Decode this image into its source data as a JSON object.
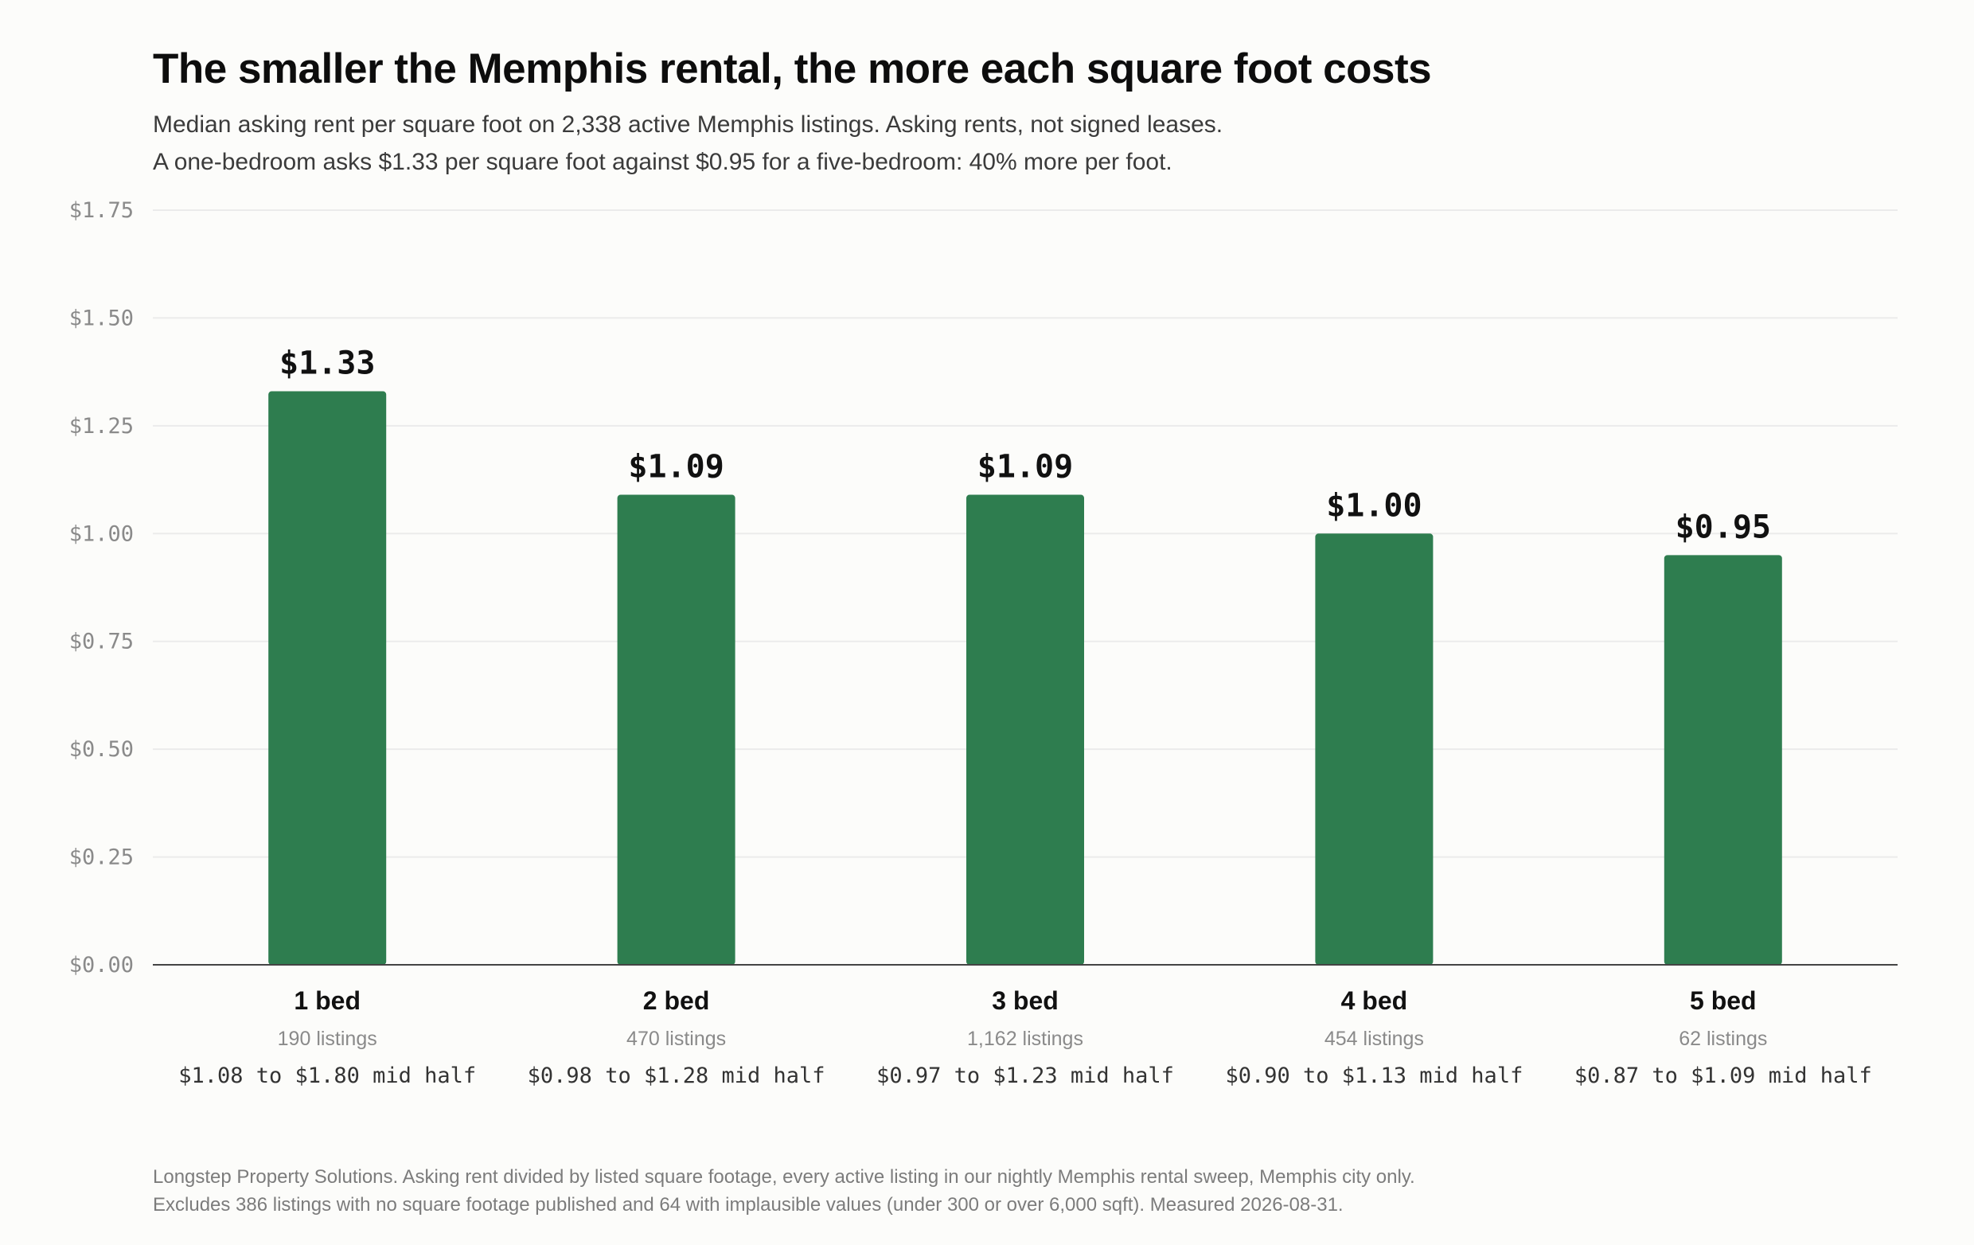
{
  "title": "The smaller the Memphis rental, the more each square foot costs",
  "subtitle_lines": [
    "Median asking rent per square foot on 2,338 active Memphis listings. Asking rents, not signed leases.",
    "A one-bedroom asks $1.33 per square foot against $0.95 for a five-bedroom: 40% more per foot."
  ],
  "footer_lines": [
    "Longstep Property Solutions. Asking rent divided by listed square footage, every active listing in our nightly Memphis rental sweep, Memphis city only.",
    "Excludes 386 listings with no square footage published and 64 with implausible values (under 300 or over 6,000 sqft). Measured 2026-08-31."
  ],
  "colors": {
    "bar": "#2e7d4f",
    "grid": "#ebebeb",
    "axis": "#444444",
    "tick_label": "#8a8a8a",
    "value_label": "#111111",
    "category_label": "#111111",
    "count_label": "#8a8a8a",
    "range_label": "#333333"
  },
  "chart_data": {
    "type": "bar",
    "title": "The smaller the Memphis rental, the more each square foot costs",
    "xlabel": "",
    "ylabel": "",
    "ylim": [
      0,
      1.75
    ],
    "yticks": [
      0,
      0.25,
      0.5,
      0.75,
      1.0,
      1.25,
      1.5,
      1.75
    ],
    "ytick_labels": [
      "$0.00",
      "$0.25",
      "$0.50",
      "$0.75",
      "$1.00",
      "$1.25",
      "$1.50",
      "$1.75"
    ],
    "grid": true,
    "legend": "none",
    "categories": [
      "1 bed",
      "2 bed",
      "3 bed",
      "4 bed",
      "5 bed"
    ],
    "values": [
      1.33,
      1.09,
      1.09,
      1.0,
      0.95
    ],
    "value_labels": [
      "$1.33",
      "$1.09",
      "$1.09",
      "$1.00",
      "$0.95"
    ],
    "listing_counts": [
      "190 listings",
      "470 listings",
      "1,162 listings",
      "454 listings",
      "62 listings"
    ],
    "mid_half_ranges": [
      "$1.08 to $1.80 mid half",
      "$0.98 to $1.28 mid half",
      "$0.97 to $1.23 mid half",
      "$0.90 to $1.13 mid half",
      "$0.87 to $1.09 mid half"
    ]
  }
}
